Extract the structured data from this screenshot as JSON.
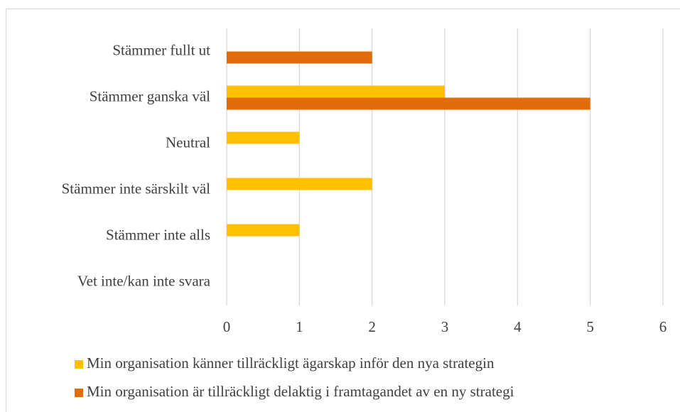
{
  "chart_data": {
    "type": "hbar",
    "categories": [
      "Stämmer fullt ut",
      "Stämmer ganska väl",
      "Neutral",
      "Stämmer inte särskilt väl",
      "Stämmer inte alls",
      "Vet inte/kan inte svara"
    ],
    "series": [
      {
        "name": "Min organisation känner tillräckligt ägarskap inför den nya strategin",
        "color": "#ffc000",
        "values": [
          0,
          3,
          1,
          2,
          1,
          0
        ]
      },
      {
        "name": "Min organisation är tillräckligt delaktig i framtagandet av en ny strategi",
        "color": "#e26b0a",
        "values": [
          2,
          5,
          0,
          0,
          0,
          0
        ]
      }
    ],
    "xlim": [
      0,
      6
    ],
    "xticks": [
      0,
      1,
      2,
      3,
      4,
      5,
      6
    ],
    "grid": true,
    "legend": "bottom"
  }
}
